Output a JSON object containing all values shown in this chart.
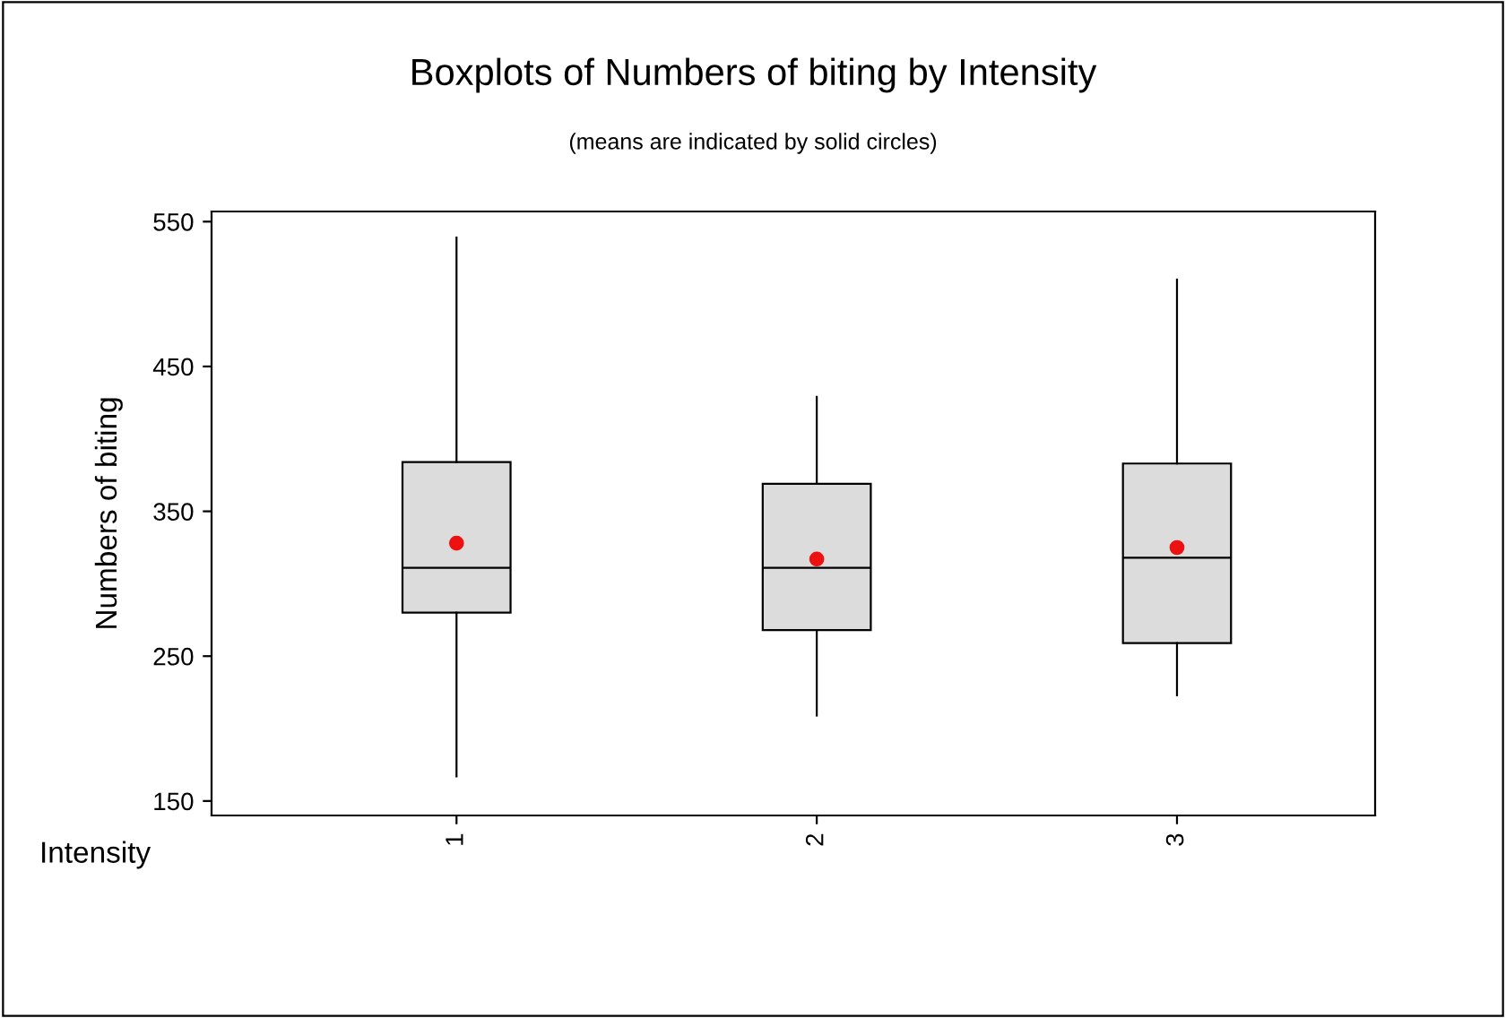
{
  "chart_data": {
    "type": "box",
    "title": "Boxplots of Numbers of biting by Intensity",
    "subtitle": "(means are indicated by solid circles)",
    "xlabel": "Intensity",
    "ylabel": "Numbers of biting",
    "categories": [
      "1",
      "2",
      "3"
    ],
    "boxes": [
      {
        "low": 167,
        "q1": 280,
        "median": 311,
        "q3": 384,
        "high": 539
      },
      {
        "low": 209,
        "q1": 268,
        "median": 311,
        "q3": 369,
        "high": 429
      },
      {
        "low": 223,
        "q1": 259,
        "median": 318,
        "q3": 383,
        "high": 510
      }
    ],
    "color": "#dcdcdc",
    "series": [
      {
        "type": "scatter",
        "x": [
          "1",
          "2",
          "3"
        ],
        "values": [
          328,
          317,
          325
        ],
        "color": "#ee1111",
        "marker": "circle"
      }
    ],
    "ylim": [
      140,
      557
    ],
    "yticks": [
      150,
      250,
      350,
      450,
      550
    ],
    "grid": false,
    "legend": false
  }
}
